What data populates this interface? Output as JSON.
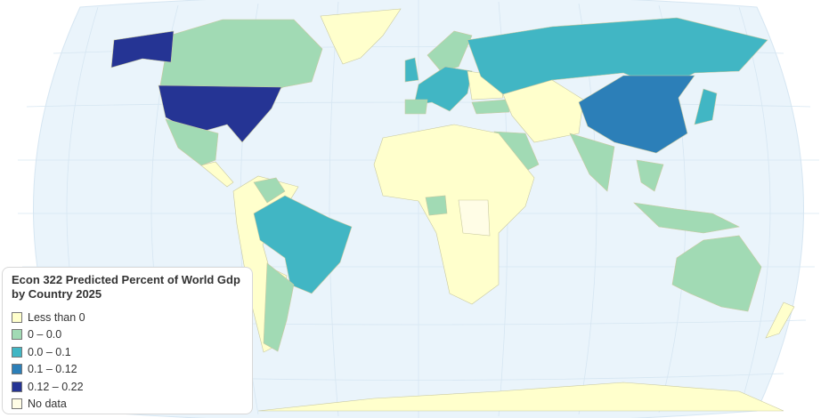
{
  "legend": {
    "title": "Econ 322 Predicted Percent of World Gdp by Country 2025",
    "items": [
      {
        "label": "Less than 0",
        "color": "#ffffcc"
      },
      {
        "label": "0 – 0.0",
        "color": "#a1dab4"
      },
      {
        "label": "0.0 – 0.1",
        "color": "#41b6c4"
      },
      {
        "label": "0.1 – 0.12",
        "color": "#2c7fb8"
      },
      {
        "label": "0.12 – 0.22",
        "color": "#253494"
      },
      {
        "label": "No data",
        "color": "#fffde6"
      }
    ]
  },
  "colors": {
    "ocean": "#eaf4fb",
    "border": "#c9c9a0"
  }
}
